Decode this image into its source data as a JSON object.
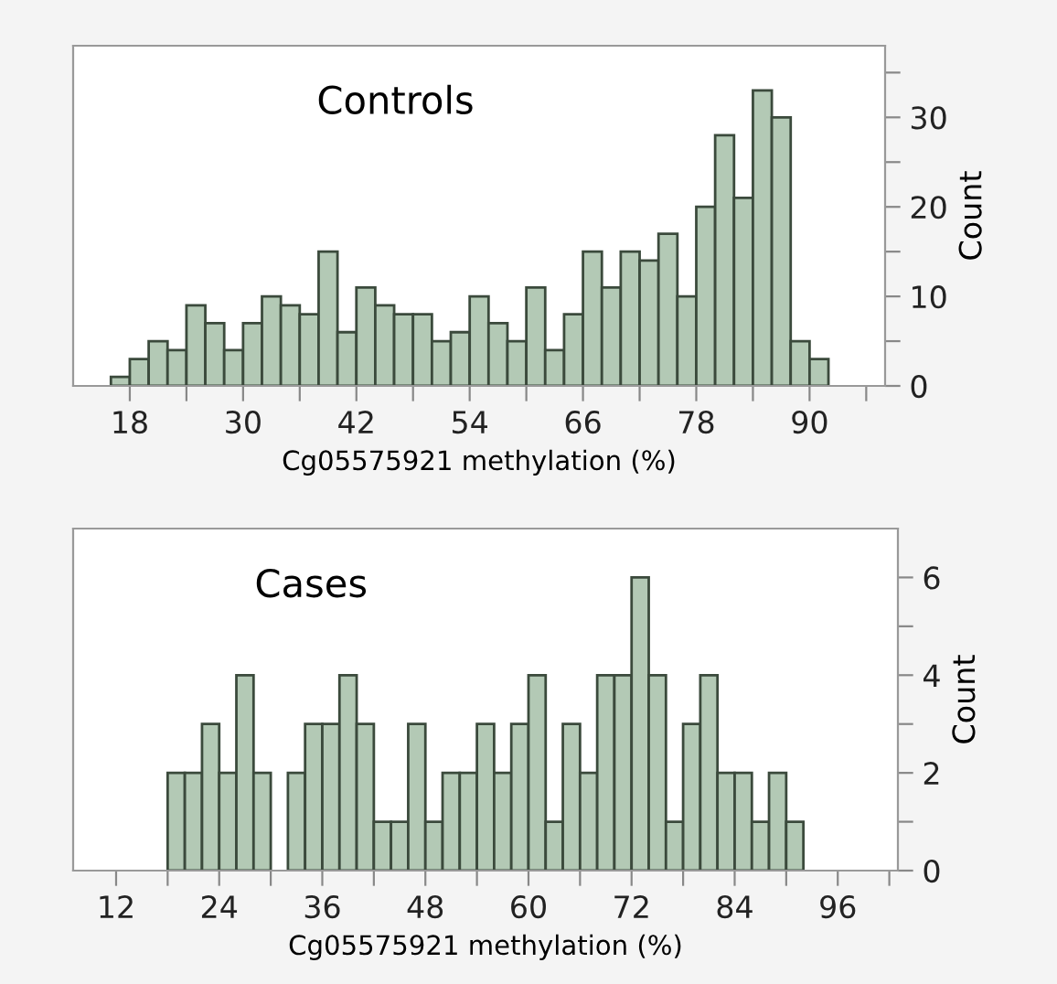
{
  "chart_data": [
    {
      "type": "histogram",
      "title": "Controls",
      "xlabel": "Cg05575921 methylation (%)",
      "ylabel": "Count",
      "color": "#b3c9b5",
      "bins": [
        16,
        18,
        20,
        22,
        24,
        26,
        28,
        30,
        32,
        34,
        36,
        38,
        40,
        42,
        44,
        46,
        48,
        50,
        52,
        54,
        56,
        58,
        60,
        62,
        64,
        66,
        68,
        70,
        72,
        74,
        76,
        78,
        80,
        82,
        84,
        86,
        88,
        90,
        92
      ],
      "values": [
        1,
        3,
        5,
        4,
        9,
        7,
        4,
        7,
        10,
        9,
        8,
        15,
        6,
        11,
        9,
        8,
        8,
        5,
        6,
        10,
        7,
        5,
        11,
        4,
        8,
        15,
        11,
        15,
        14,
        17,
        10,
        20,
        28,
        21,
        33,
        30,
        5,
        3
      ],
      "xlim": [
        12,
        98
      ],
      "ylim": [
        0,
        38
      ],
      "xticks": [
        18,
        {
          "value": 24,
          "label": null
        },
        30,
        {
          "value": 36,
          "label": null
        },
        42,
        {
          "value": 48,
          "label": null
        },
        54,
        {
          "value": 60,
          "label": null
        },
        66,
        {
          "value": 72,
          "label": null
        },
        78,
        {
          "value": 84,
          "label": null
        },
        90,
        {
          "value": 96,
          "label": null
        }
      ],
      "yticks": [
        0,
        {
          "value": 5,
          "label": null
        },
        10,
        {
          "value": 15,
          "label": null
        },
        20,
        {
          "value": 25,
          "label": null
        },
        30,
        {
          "value": 35,
          "label": null
        }
      ],
      "grid": false,
      "legend": false
    },
    {
      "type": "histogram",
      "title": "Cases",
      "xlabel": "Cg05575921 methylation (%)",
      "ylabel": "Count",
      "color": "#b3c9b5",
      "bins": [
        18,
        20,
        22,
        24,
        26,
        28,
        30,
        32,
        34,
        36,
        38,
        40,
        42,
        44,
        46,
        48,
        50,
        52,
        54,
        56,
        58,
        60,
        62,
        64,
        66,
        68,
        70,
        72,
        74,
        76,
        78,
        80,
        82,
        84,
        86,
        88,
        90,
        92
      ],
      "values": [
        2,
        2,
        3,
        2,
        4,
        2,
        0,
        2,
        3,
        3,
        4,
        3,
        1,
        1,
        3,
        1,
        2,
        2,
        3,
        2,
        3,
        4,
        1,
        3,
        2,
        4,
        4,
        6,
        4,
        1,
        3,
        4,
        2,
        2,
        1,
        2,
        1
      ],
      "xlim": [
        7,
        103
      ],
      "ylim": [
        0,
        7
      ],
      "xticks": [
        12,
        {
          "value": 18,
          "label": null
        },
        24,
        {
          "value": 30,
          "label": null
        },
        36,
        {
          "value": 42,
          "label": null
        },
        48,
        {
          "value": 54,
          "label": null
        },
        60,
        {
          "value": 66,
          "label": null
        },
        72,
        {
          "value": 78,
          "label": null
        },
        84,
        {
          "value": 90,
          "label": null
        },
        96,
        {
          "value": 102,
          "label": null
        }
      ],
      "yticks": [
        0,
        {
          "value": 1,
          "label": null
        },
        2,
        {
          "value": 3,
          "label": null
        },
        4,
        {
          "value": 5,
          "label": null
        },
        6
      ],
      "grid": false,
      "legend": false
    }
  ]
}
